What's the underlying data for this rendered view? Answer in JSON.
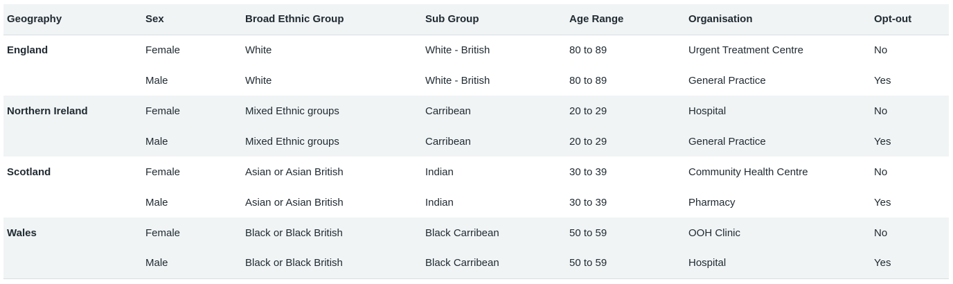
{
  "table": {
    "headers": [
      "Geography",
      "Sex",
      "Broad Ethnic Group",
      "Sub Group",
      "Age Range",
      "Organisation",
      "Opt-out"
    ],
    "groups": [
      {
        "geography": "England",
        "rows": [
          {
            "sex": "Female",
            "ethnic": "White",
            "sub": "White - British",
            "age": "80 to 89",
            "org": "Urgent Treatment Centre",
            "optout": "No"
          },
          {
            "sex": "Male",
            "ethnic": "White",
            "sub": "White - British",
            "age": "80 to 89",
            "org": "General Practice",
            "optout": "Yes"
          }
        ]
      },
      {
        "geography": "Northern Ireland",
        "rows": [
          {
            "sex": "Female",
            "ethnic": "Mixed Ethnic groups",
            "sub": "Carribean",
            "age": "20 to 29",
            "org": "Hospital",
            "optout": "No"
          },
          {
            "sex": "Male",
            "ethnic": "Mixed Ethnic groups",
            "sub": "Carribean",
            "age": "20 to 29",
            "org": "General Practice",
            "optout": "Yes"
          }
        ]
      },
      {
        "geography": "Scotland",
        "rows": [
          {
            "sex": "Female",
            "ethnic": "Asian or Asian British",
            "sub": "Indian",
            "age": "30 to 39",
            "org": "Community Health Centre",
            "optout": "No"
          },
          {
            "sex": "Male",
            "ethnic": "Asian or Asian British",
            "sub": "Indian",
            "age": "30 to 39",
            "org": "Pharmacy",
            "optout": "Yes"
          }
        ]
      },
      {
        "geography": "Wales",
        "rows": [
          {
            "sex": "Female",
            "ethnic": "Black or Black British",
            "sub": "Black Carribean",
            "age": "50 to 59",
            "org": "OOH Clinic",
            "optout": "No"
          },
          {
            "sex": "Male",
            "ethnic": "Black or Black British",
            "sub": "Black Carribean",
            "age": "50 to 59",
            "org": "Hospital",
            "optout": "Yes"
          }
        ]
      }
    ]
  }
}
